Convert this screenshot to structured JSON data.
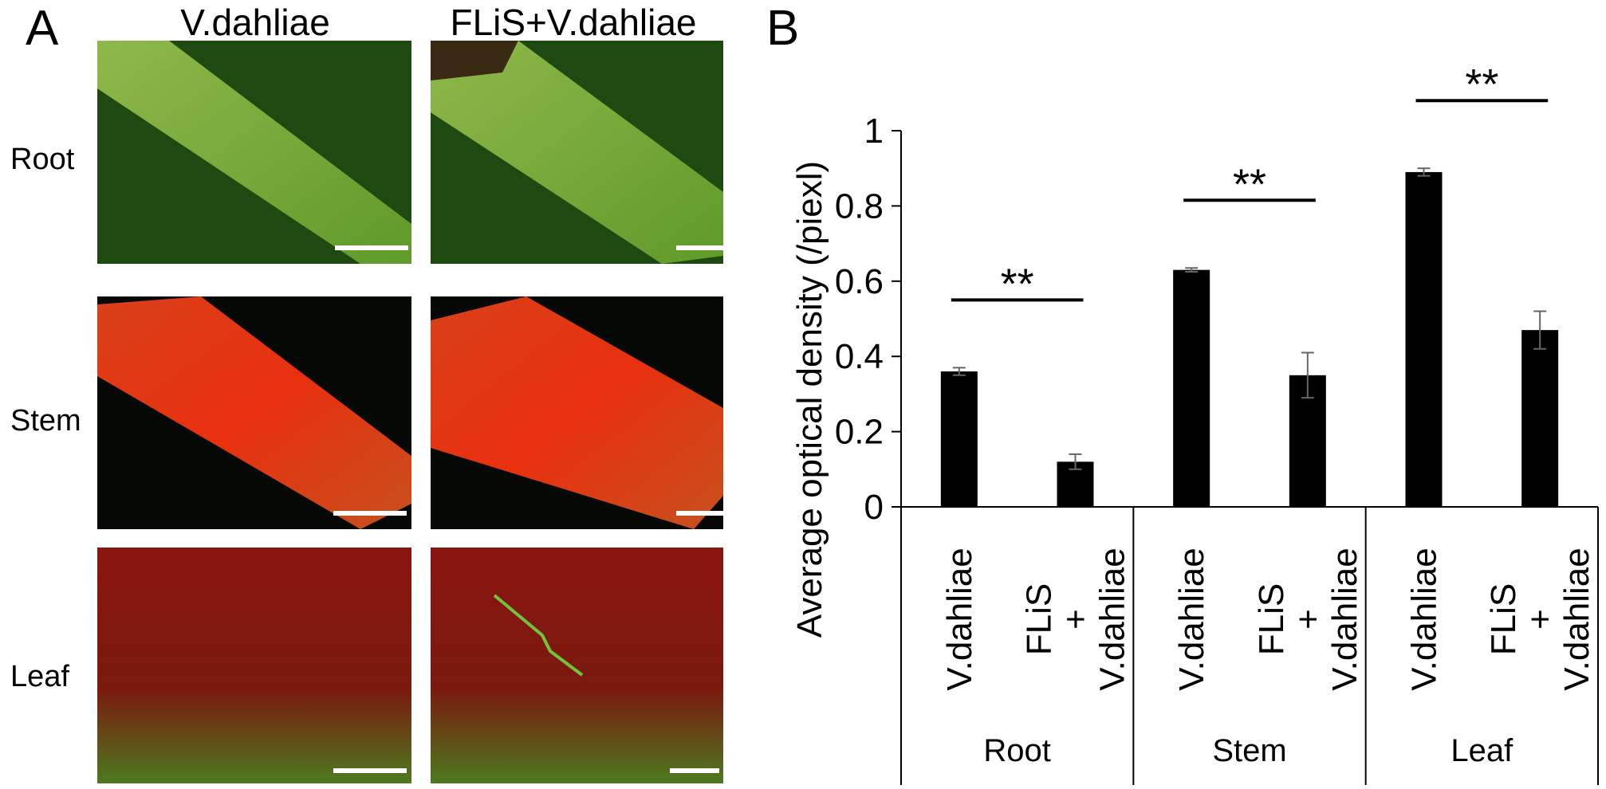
{
  "panel_a": {
    "label": "A",
    "columns": [
      "V.dahliae",
      "FLiS+V.dahliae"
    ],
    "rows": [
      "Root",
      "Stem",
      "Leaf"
    ]
  },
  "chart_data": {
    "type": "bar",
    "panel_label": "B",
    "y_label": "Average optical density (/piexl)",
    "groups": [
      "Root",
      "Stem",
      "Leaf"
    ],
    "categories": [
      [
        "V.dahliae"
      ],
      [
        "FLiS",
        "+",
        "V.dahliae"
      ],
      [
        "V.dahliae"
      ],
      [
        "FLiS",
        "+",
        "V.dahliae"
      ],
      [
        "V.dahliae"
      ],
      [
        "FLiS",
        "+",
        "V.dahliae"
      ]
    ],
    "values": [
      0.36,
      0.12,
      0.63,
      0.35,
      0.89,
      0.47
    ],
    "errors": [
      0.01,
      0.02,
      0.005,
      0.06,
      0.01,
      0.05
    ],
    "significance": [
      "**",
      "**",
      "**"
    ],
    "color": "#000000",
    "ylim": [
      0,
      1
    ],
    "yticks": [
      0,
      0.2,
      0.4,
      0.6,
      0.8,
      1
    ]
  }
}
